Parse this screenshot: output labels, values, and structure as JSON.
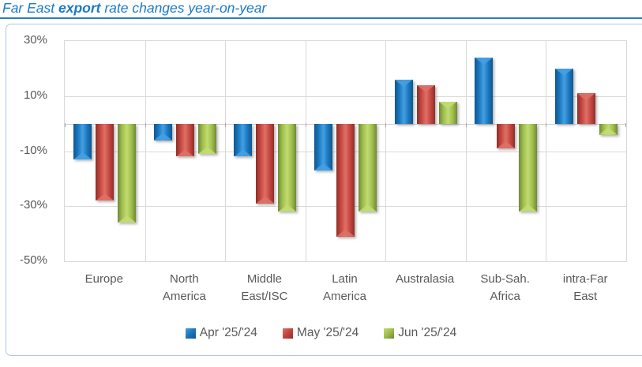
{
  "title": {
    "prefix": "Far East ",
    "bold": "export",
    "suffix": " rate changes year-on-year"
  },
  "colors": {
    "title_text": "#1B7AC6",
    "title_rule": "#2E7CBE",
    "frame_border": "#AFC8E1",
    "plot_border": "#D9D9D9",
    "gridline": "#D9D9D9",
    "zero_axis": "#D0D0D0",
    "axis_tick": "#A6A6A6",
    "axis_text": "#595959",
    "series": [
      {
        "name": "Apr '25/'24",
        "base": "#1B76BD",
        "light": "#44A0E2",
        "dark": "#0D5890"
      },
      {
        "name": "May '25/'24",
        "base": "#C4463E",
        "light": "#DE7067",
        "dark": "#8E2F2A"
      },
      {
        "name": "Jun '25/'24",
        "base": "#9FBE4B",
        "light": "#C2DB72",
        "dark": "#71883A"
      }
    ]
  },
  "chart_data": {
    "type": "bar",
    "title": "Far East export rate changes year-on-year",
    "categories": [
      "Europe",
      "North America",
      "Middle East/ISC",
      "Latin America",
      "Australasia",
      "Sub-Sah. Africa",
      "intra-Far East"
    ],
    "category_labels_wrapped": [
      "Europe",
      "North\nAmerica",
      "Middle\nEast/ISC",
      "Latin\nAmerica",
      "Australasia",
      "Sub-Sah.\nAfrica",
      "intra-Far\nEast"
    ],
    "series": [
      {
        "name": "Apr '25/'24",
        "values": [
          -13,
          -6,
          -12,
          -17,
          16,
          24,
          20
        ]
      },
      {
        "name": "May '25/'24",
        "values": [
          -28,
          -12,
          -29,
          -41,
          14,
          -9,
          11
        ]
      },
      {
        "name": "Jun '25/'24",
        "values": [
          -36,
          -11,
          -32,
          -32,
          8,
          -32,
          -4
        ]
      }
    ],
    "unit": "%",
    "xlabel": "",
    "ylabel": "",
    "ylim": [
      -50,
      30
    ],
    "yticks": [
      {
        "value": 30,
        "label": "30%"
      },
      {
        "value": 10,
        "label": "10%"
      },
      {
        "value": -10,
        "label": "-10%"
      },
      {
        "value": -30,
        "label": "-30%"
      },
      {
        "value": -50,
        "label": "-50%"
      }
    ],
    "grid": true,
    "legend_position": "bottom",
    "legend": [
      "Apr '25/'24",
      "May '25/'24",
      "Jun '25/'24"
    ]
  }
}
